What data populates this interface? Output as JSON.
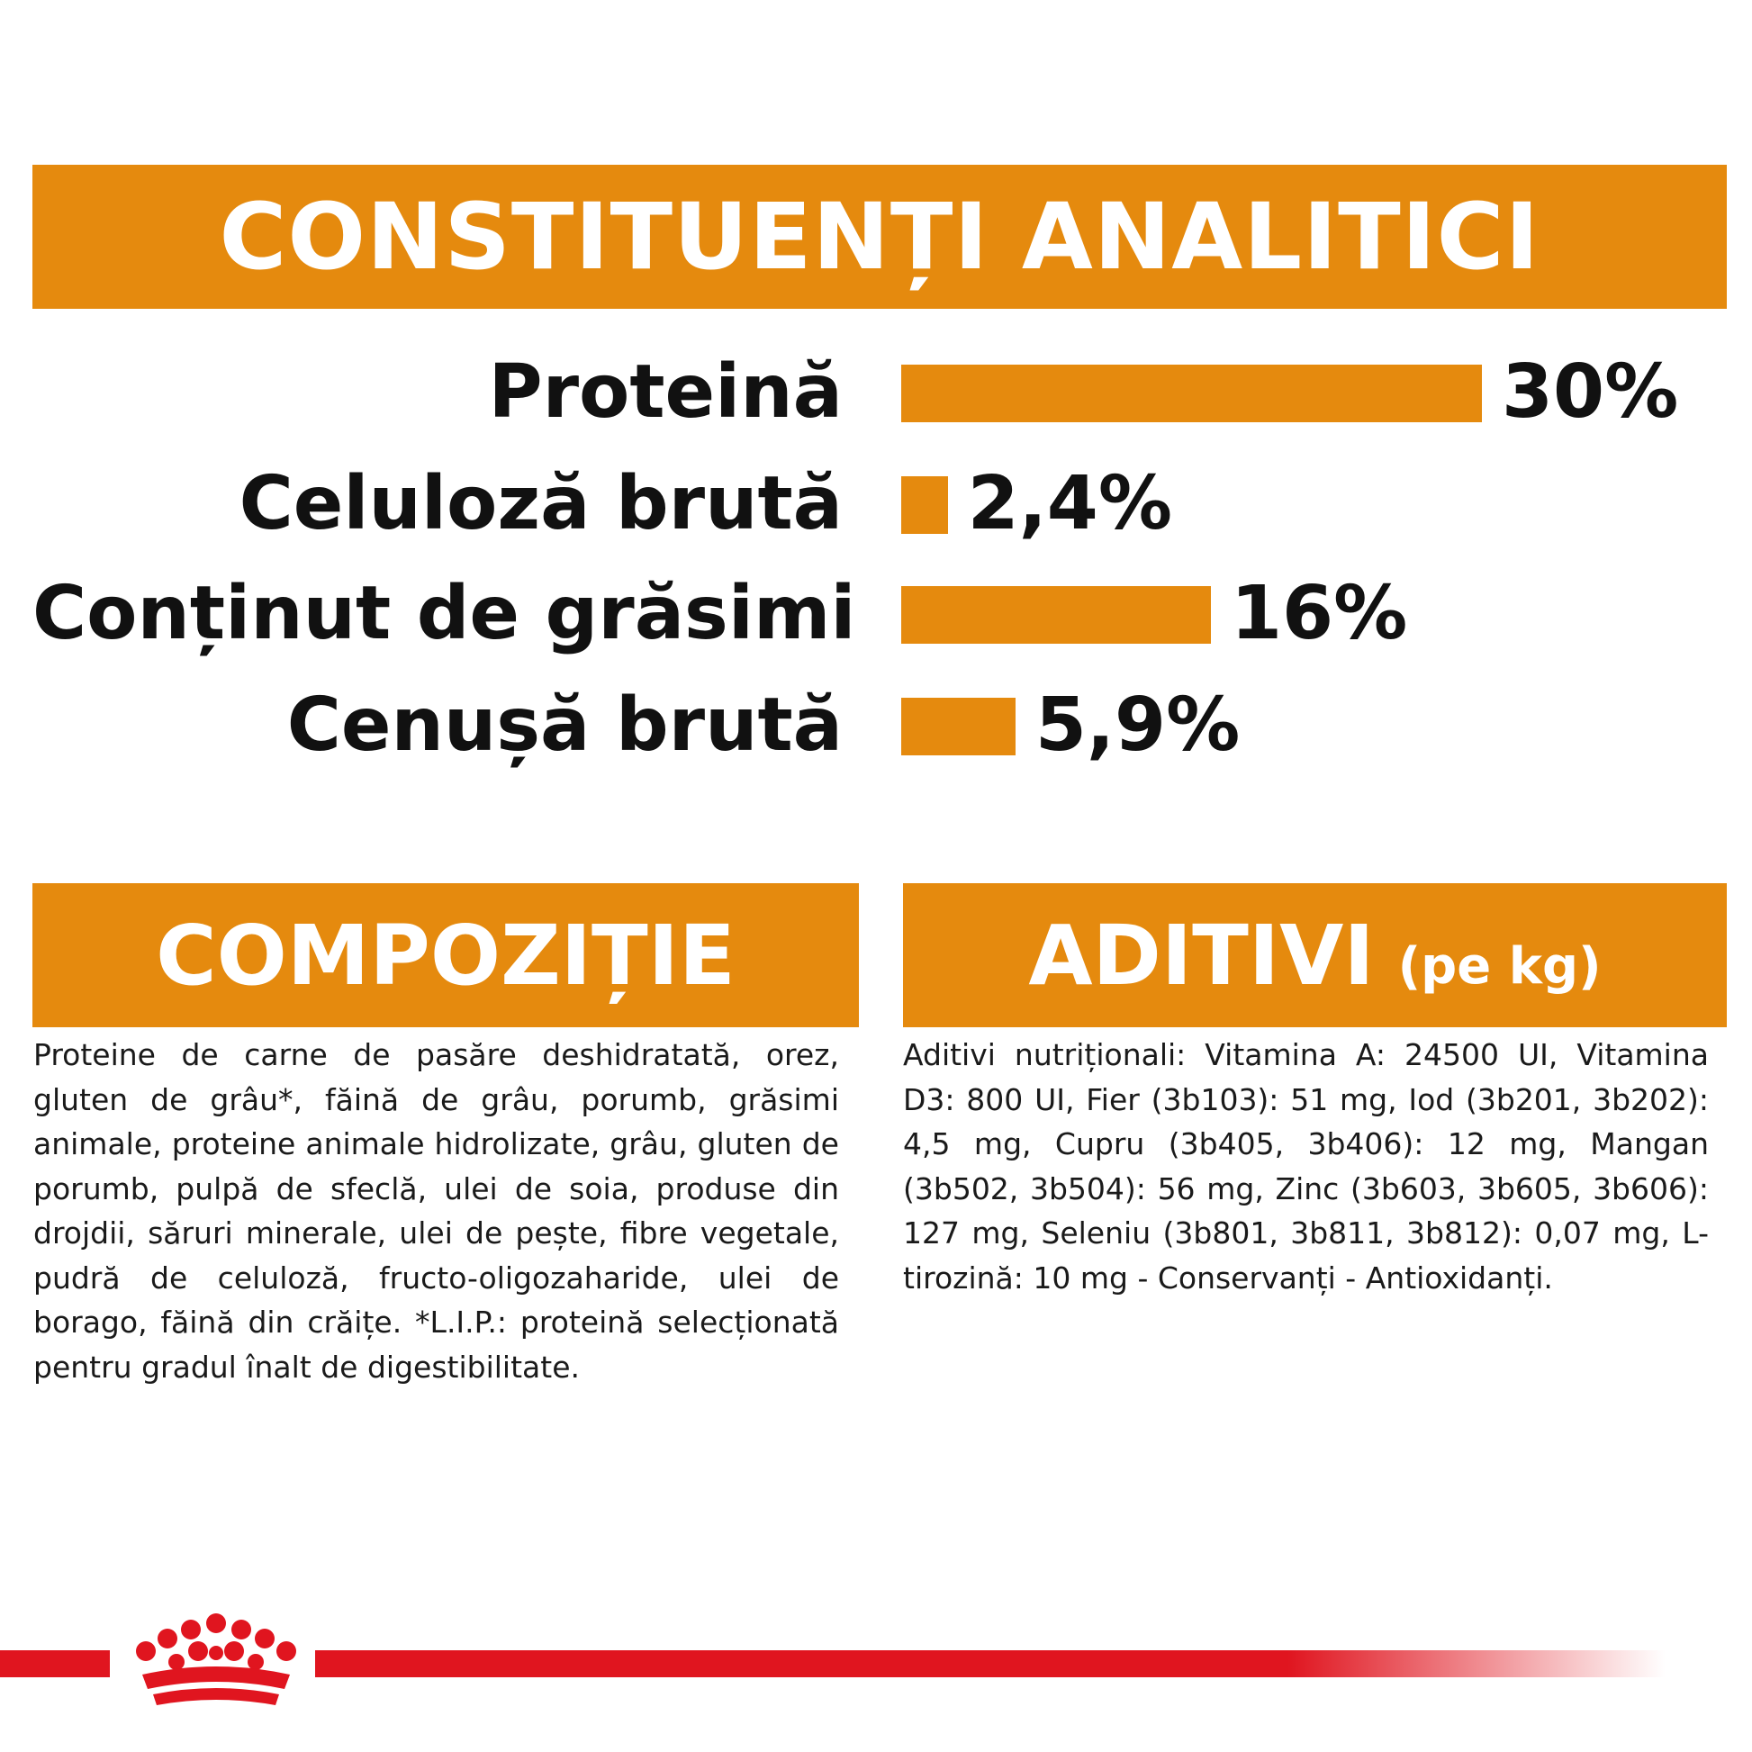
{
  "colors": {
    "accent": "#e58a0e",
    "brand_red": "#e0151f"
  },
  "analytic": {
    "title": "CONSTITUENȚI ANALITICI",
    "rows": [
      {
        "label": "Proteină",
        "value_text": "30%",
        "value": 30
      },
      {
        "label": "Celuloză brută",
        "value_text": "2,4%",
        "value": 2.4
      },
      {
        "label": "Conținut de grăsimi",
        "value_text": "16%",
        "value": 16
      },
      {
        "label": "Cenușă brută",
        "value_text": "5,9%",
        "value": 5.9
      }
    ]
  },
  "composition": {
    "title": "COMPOZIȚIE",
    "text": "Proteine de carne de pasăre deshidratată, orez, gluten de grâu*, făină de grâu, porumb, grăsimi animale, proteine animale hidrolizate, grâu, gluten de porumb, pulpă de sfeclă, ulei de soia, produse din drojdii, săruri minerale, ulei de pește, fibre vegetale, pudră de celuloză, fructo-oligozaharide, ulei de borago, făină din crăițe. *L.I.P.: proteină selecționată pentru gradul înalt de digestibilitate."
  },
  "additives": {
    "title": "ADITIVI",
    "unit": "(pe kg)",
    "text": "Aditivi nutriționali: Vitamina A: 24500 UI, Vitamina D3: 800 UI, Fier (3b103): 51 mg, Iod (3b201, 3b202): 4,5 mg, Cupru (3b405, 3b406): 12 mg, Mangan (3b502, 3b504): 56 mg, Zinc (3b603, 3b605, 3b606): 127 mg, Seleniu (3b801, 3b811, 3b812): 0,07 mg, L-tirozină: 10 mg - Conservanți - Antioxidanți."
  },
  "footer": {
    "logo_icon": "crown-logo-icon"
  }
}
